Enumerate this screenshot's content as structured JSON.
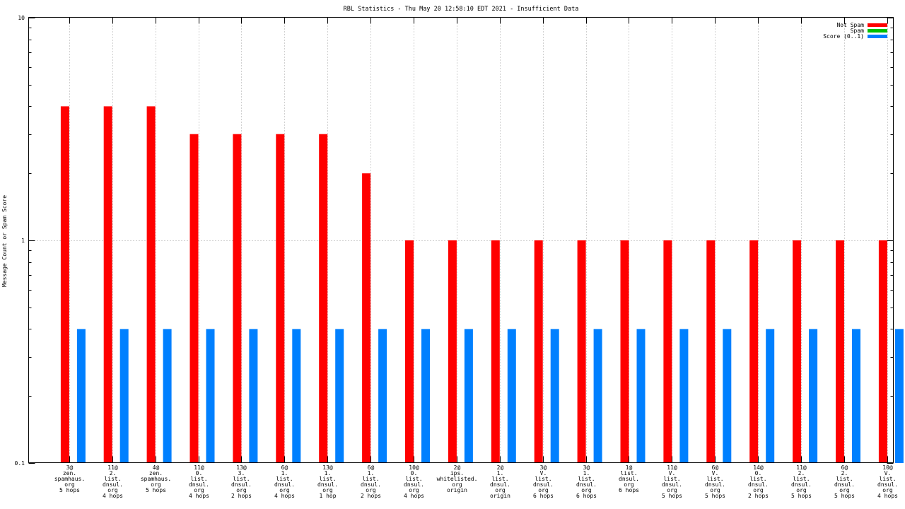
{
  "chart_data": {
    "type": "bar",
    "title": "RBL Statistics - Thu May 20 12:58:10 EDT 2021 - Insufficient Data",
    "xlabel": "",
    "ylabel": "Message Count or Spam Score",
    "yscale": "log",
    "ylim": [
      0.1,
      10
    ],
    "yticks": [
      "0.1",
      "1",
      "10"
    ],
    "grid": true,
    "legend_position": "top-right",
    "categories": [
      [
        "3@",
        "zen.",
        "spamhaus.",
        "org",
        "5 hops"
      ],
      [
        "11@",
        "2.",
        "list.",
        "dnsul.",
        "org",
        "4 hops"
      ],
      [
        "4@",
        "zen.",
        "spamhaus.",
        "org",
        "5 hops"
      ],
      [
        "11@",
        "0.",
        "list.",
        "dnsul.",
        "org",
        "4 hops"
      ],
      [
        "13@",
        "3.",
        "list.",
        "dnsul.",
        "org",
        "2 hops"
      ],
      [
        "6@",
        "1.",
        "list.",
        "dnsul.",
        "org",
        "4 hops"
      ],
      [
        "13@",
        "1.",
        "list.",
        "dnsul.",
        "org",
        "1 hop"
      ],
      [
        "6@",
        "1.",
        "list.",
        "dnsul.",
        "org",
        "2 hops"
      ],
      [
        "10@",
        "0.",
        "list.",
        "dnsul.",
        "org",
        "4 hops"
      ],
      [
        "2@",
        "ips.",
        "whitelisted.",
        "org",
        "origin"
      ],
      [
        "2@",
        "1.",
        "list.",
        "dnsul.",
        "org",
        "origin"
      ],
      [
        "3@",
        "V.",
        "list.",
        "dnsul.",
        "org",
        "6 hops"
      ],
      [
        "3@",
        "1.",
        "list.",
        "dnsul.",
        "org",
        "6 hops"
      ],
      [
        "1@",
        "list.",
        "dnsul.",
        "org",
        "6 hops"
      ],
      [
        "11@",
        "V.",
        "list.",
        "dnsul.",
        "org",
        "5 hops"
      ],
      [
        "6@",
        "V.",
        "list.",
        "dnsul.",
        "org",
        "5 hops"
      ],
      [
        "14@",
        "0.",
        "list.",
        "dnsul.",
        "org",
        "2 hops"
      ],
      [
        "11@",
        "2.",
        "list.",
        "dnsul.",
        "org",
        "5 hops"
      ],
      [
        "6@",
        "2.",
        "list.",
        "dnsul.",
        "org",
        "5 hops"
      ],
      [
        "10@",
        "V.",
        "list.",
        "dnsul.",
        "org",
        "4 hops"
      ]
    ],
    "series": [
      {
        "name": "Not Spam",
        "color": "#ff0000",
        "values": [
          4,
          4,
          4,
          3,
          3,
          3,
          3,
          2,
          1,
          1,
          1,
          1,
          1,
          1,
          1,
          1,
          1,
          1,
          1,
          1
        ]
      },
      {
        "name": "Spam",
        "color": "#00c000",
        "values": [
          0,
          0,
          0,
          0,
          0,
          0,
          0,
          0,
          0,
          0,
          0,
          0,
          0,
          0,
          0,
          0,
          0,
          0,
          0,
          0
        ]
      },
      {
        "name": "Score (0..1)",
        "color": "#0080ff",
        "values": [
          0.4,
          0.4,
          0.4,
          0.4,
          0.4,
          0.4,
          0.4,
          0.4,
          0.4,
          0.4,
          0.4,
          0.4,
          0.4,
          0.4,
          0.4,
          0.4,
          0.4,
          0.4,
          0.4,
          0.4
        ]
      }
    ]
  }
}
